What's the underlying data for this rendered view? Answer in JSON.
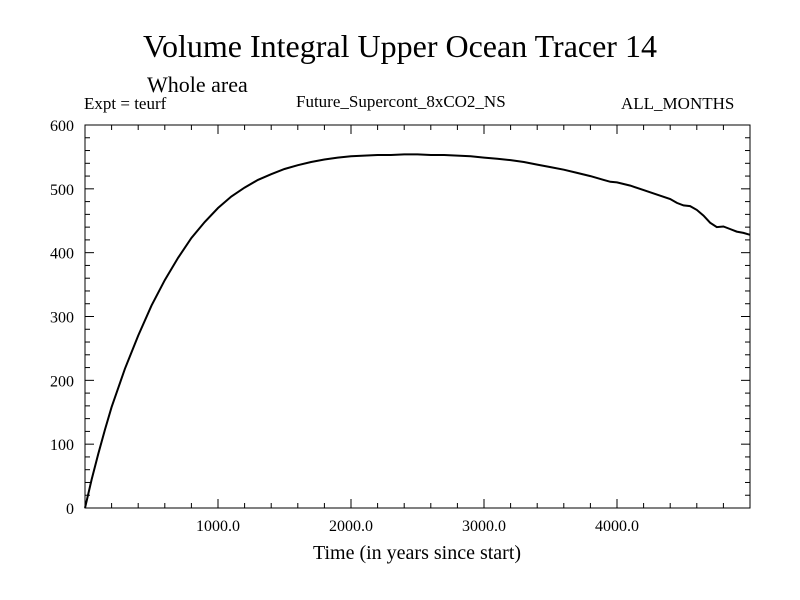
{
  "header": {
    "title": "Volume Integral Upper Ocean Tracer 14",
    "subtitle": "Whole area",
    "experiment": "Expt = teurf",
    "experiment_name": "Future_Supercont_8xCO2_NS",
    "period": "ALL_MONTHS"
  },
  "chart_data": {
    "type": "line",
    "title": "Volume Integral Upper Ocean Tracer 14",
    "subtitle": "Whole area",
    "xlabel": "Time (in years since start)",
    "ylabel": "",
    "xlim": [
      0,
      5000
    ],
    "ylim": [
      0,
      600
    ],
    "x_ticks": [
      1000,
      2000,
      3000,
      4000
    ],
    "x_tick_labels": [
      "1000.0",
      "2000.0",
      "3000.0",
      "4000.0"
    ],
    "y_ticks": [
      0,
      100,
      200,
      300,
      400,
      500,
      600
    ],
    "y_tick_labels": [
      "0",
      "100",
      "200",
      "300",
      "400",
      "500",
      "600"
    ],
    "grid": false,
    "legend": "none",
    "line_color": "#000000",
    "series": [
      {
        "x": [
          0,
          50,
          100,
          150,
          200,
          300,
          400,
          500,
          600,
          700,
          800,
          900,
          1000,
          1100,
          1200,
          1300,
          1400,
          1500,
          1600,
          1700,
          1800,
          1900,
          2000,
          2100,
          2200,
          2300,
          2400,
          2500,
          2600,
          2700,
          2800,
          2900,
          3000,
          3100,
          3200,
          3300,
          3400,
          3500,
          3600,
          3700,
          3800,
          3900,
          3950,
          4000,
          4100,
          4200,
          4300,
          4400,
          4450,
          4500,
          4550,
          4600,
          4650,
          4700,
          4750,
          4800,
          4850,
          4900,
          4950,
          5000
        ],
        "y": [
          0,
          45,
          85,
          123,
          158,
          218,
          270,
          317,
          357,
          392,
          423,
          448,
          470,
          488,
          502,
          514,
          523,
          531,
          537,
          542,
          546,
          549,
          551,
          552,
          553,
          553,
          554,
          554,
          553,
          553,
          552,
          551,
          549,
          547,
          545,
          542,
          538,
          534,
          530,
          525,
          520,
          514,
          511,
          510,
          505,
          498,
          491,
          484,
          478,
          474,
          473,
          467,
          458,
          447,
          440,
          441,
          437,
          433,
          431,
          428
        ]
      }
    ]
  }
}
